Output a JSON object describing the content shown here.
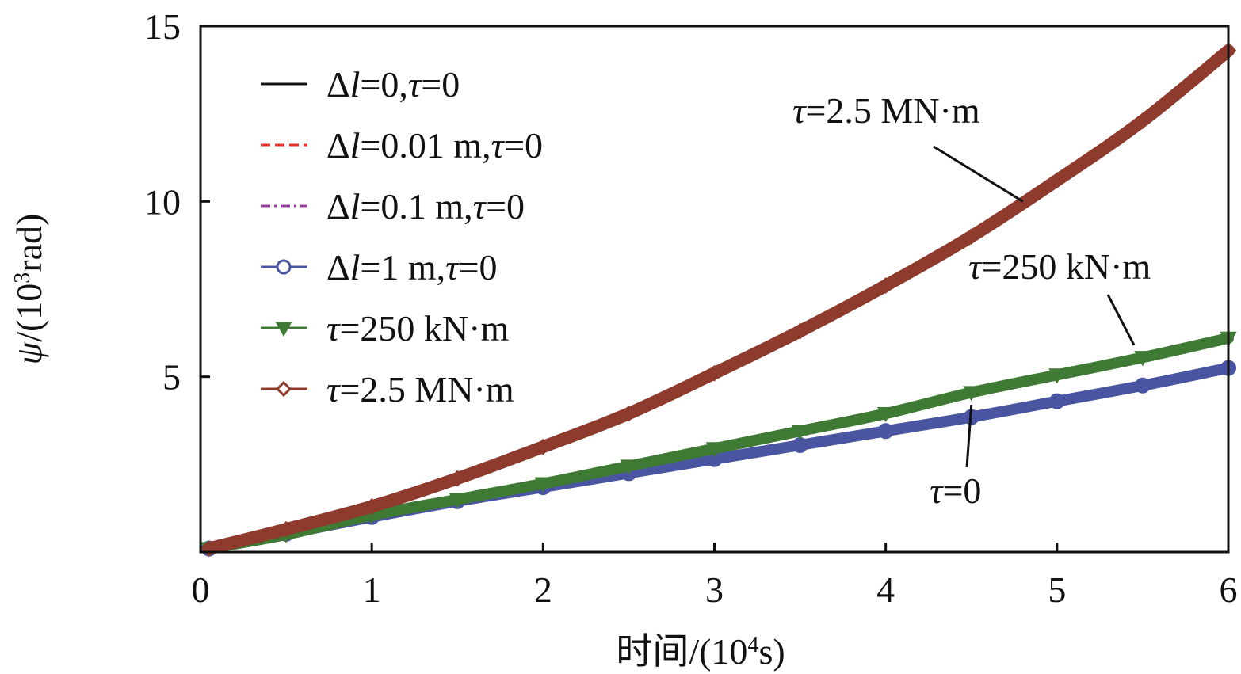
{
  "chart_data": {
    "type": "line",
    "title": "",
    "xlabel": "时间/(10⁴s)",
    "ylabel": "ψ/(10³rad)",
    "xlim": [
      0,
      6
    ],
    "ylim": [
      0,
      15
    ],
    "x_ticks": [
      "0",
      "1",
      "2",
      "3",
      "4",
      "5",
      "6"
    ],
    "y_ticks": [
      "5",
      "10",
      "15"
    ],
    "grid": false,
    "legend_position": "top-left",
    "x": [
      0.05,
      0.5,
      1,
      1.5,
      2,
      2.5,
      3,
      3.5,
      4,
      4.5,
      5,
      5.5,
      6
    ],
    "series": [
      {
        "name": "Δl=0,τ=0",
        "color": "#111111",
        "line": "solid",
        "marker": "none",
        "values": [
          0.1,
          0.52,
          1.0,
          1.45,
          1.85,
          2.25,
          2.65,
          3.05,
          3.45,
          3.85,
          4.3,
          4.75,
          5.25
        ]
      },
      {
        "name": "Δl=0.01 m,τ=0",
        "color": "#e8322b",
        "line": "dashed",
        "marker": "none",
        "values": [
          0.1,
          0.52,
          1.0,
          1.45,
          1.85,
          2.25,
          2.65,
          3.05,
          3.45,
          3.85,
          4.3,
          4.75,
          5.25
        ]
      },
      {
        "name": "Δl=0.1 m,τ=0",
        "color": "#9b3f9c",
        "line": "dashdot",
        "marker": "none",
        "values": [
          0.1,
          0.52,
          1.0,
          1.45,
          1.85,
          2.25,
          2.65,
          3.05,
          3.45,
          3.85,
          4.3,
          4.75,
          5.25
        ]
      },
      {
        "name": "Δl=1 m,τ=0",
        "color": "#4a55a2",
        "line": "solid",
        "marker": "circle",
        "values": [
          0.1,
          0.52,
          1.0,
          1.45,
          1.85,
          2.25,
          2.65,
          3.05,
          3.45,
          3.85,
          4.3,
          4.75,
          5.25
        ]
      },
      {
        "name": "τ=250 kN·m",
        "color": "#3f7a35",
        "line": "solid",
        "marker": "triangle-down",
        "values": [
          0.1,
          0.5,
          1.05,
          1.5,
          1.95,
          2.45,
          2.95,
          3.45,
          3.95,
          4.55,
          5.05,
          5.55,
          6.1
        ]
      },
      {
        "name": "τ=2.5 MN·m",
        "color": "#8e3a2c",
        "line": "solid",
        "marker": "diamond",
        "values": [
          0.1,
          0.65,
          1.3,
          2.1,
          3.0,
          3.95,
          5.1,
          6.3,
          7.6,
          9.0,
          10.6,
          12.3,
          14.3
        ]
      }
    ],
    "annotations": [
      {
        "text": "τ=2.5 MN·m",
        "x": 4.8,
        "y": 10.0
      },
      {
        "text": "τ=250 kN·m",
        "x": 5.45,
        "y": 5.9
      },
      {
        "text": "τ=0",
        "x": 4.5,
        "y": 4.2
      }
    ]
  }
}
